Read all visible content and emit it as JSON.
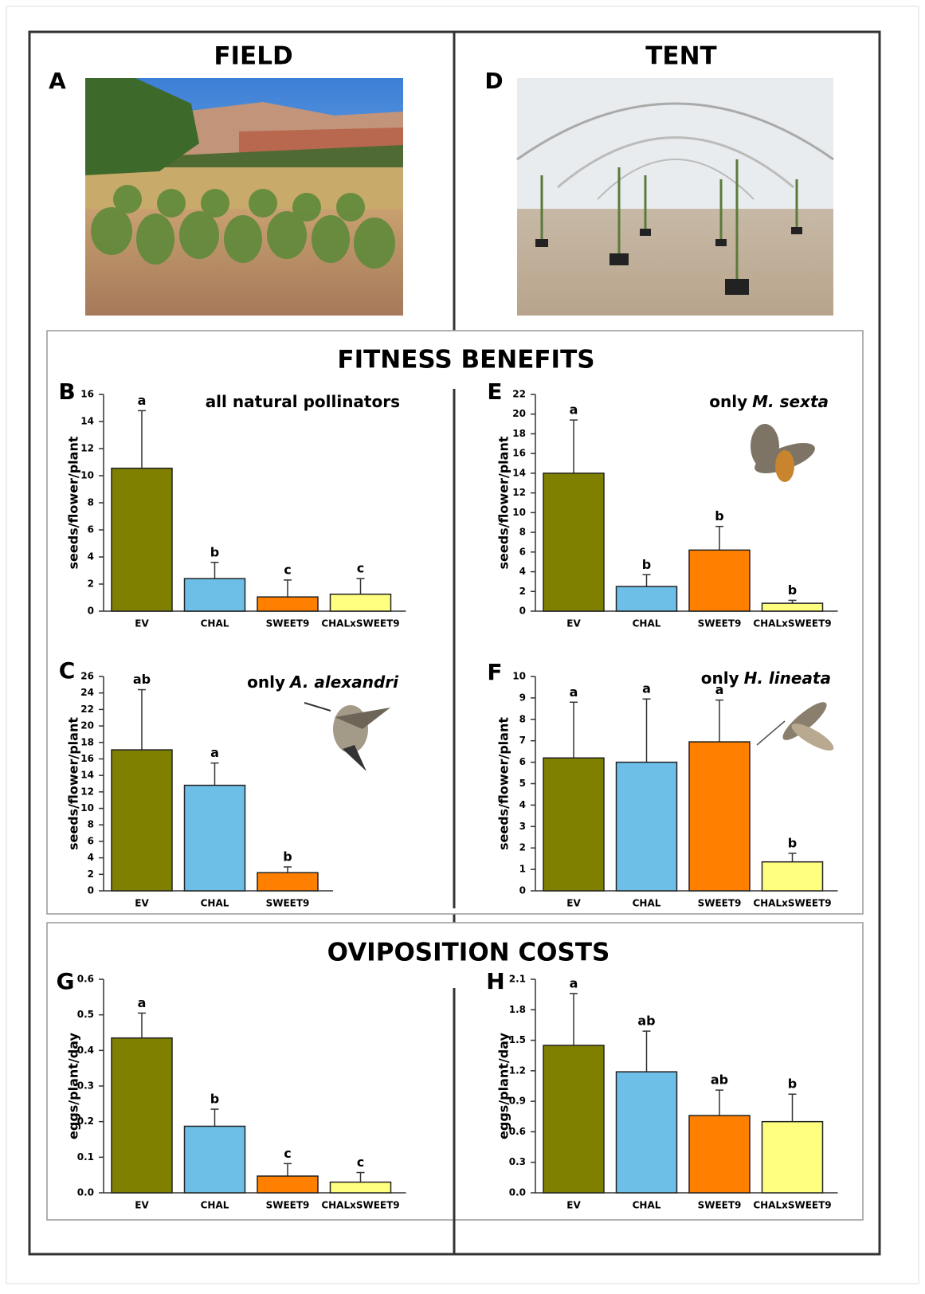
{
  "figure": {
    "field_panel": "A",
    "field_title": "FIELD",
    "tent_panel": "D",
    "tent_title": "TENT",
    "fitness_title": "FITNESS BENEFITS",
    "oviposition_title": "OVIPOSITION COSTS"
  },
  "chart_data": [
    {
      "type": "bar",
      "panel": "B",
      "subtitle": "all natural pollinators",
      "y_label": "seeds/flower/plant",
      "categories": [
        "EV",
        "CHAL",
        "SWEET9",
        "CHALxSWEET9"
      ],
      "values": [
        10.55,
        2.4,
        1.05,
        1.25
      ],
      "errors": [
        4.25,
        1.2,
        1.25,
        1.15
      ],
      "letters": [
        "a",
        "b",
        "c",
        "c"
      ],
      "colors": [
        "#808000",
        "#6dbfe8",
        "#ff8000",
        "#ffff80"
      ],
      "ylim": [
        0,
        16
      ],
      "yticks": [
        0,
        2,
        4,
        6,
        8,
        10,
        12,
        14,
        16
      ]
    },
    {
      "type": "bar",
      "panel": "E",
      "subtitle": "only",
      "subtitle_species": "M. sexta",
      "y_label": "seeds/flower/plant",
      "categories": [
        "EV",
        "CHAL",
        "SWEET9",
        "CHALxSWEET9"
      ],
      "values": [
        14.0,
        2.5,
        6.2,
        0.8
      ],
      "errors": [
        5.4,
        1.2,
        2.4,
        0.3
      ],
      "letters": [
        "a",
        "b",
        "b",
        "b"
      ],
      "colors": [
        "#808000",
        "#6dbfe8",
        "#ff8000",
        "#ffff80"
      ],
      "ylim": [
        0,
        22
      ],
      "yticks": [
        0,
        2,
        4,
        6,
        8,
        10,
        12,
        14,
        16,
        18,
        20,
        22
      ]
    },
    {
      "type": "bar",
      "panel": "C",
      "subtitle": "only",
      "subtitle_species": "A. alexandri",
      "y_label": "seeds/flower/plant",
      "categories": [
        "EV",
        "CHAL",
        "SWEET9"
      ],
      "values": [
        17.1,
        12.8,
        2.2
      ],
      "errors": [
        7.3,
        2.7,
        0.7
      ],
      "letters": [
        "ab",
        "a",
        "b"
      ],
      "colors": [
        "#808000",
        "#6dbfe8",
        "#ff8000"
      ],
      "ylim": [
        0,
        26
      ],
      "yticks": [
        0,
        2,
        4,
        6,
        8,
        10,
        12,
        14,
        16,
        18,
        20,
        22,
        24,
        26
      ]
    },
    {
      "type": "bar",
      "panel": "F",
      "subtitle": "only",
      "subtitle_species": "H. lineata",
      "y_label": "seeds/flower/plant",
      "categories": [
        "EV",
        "CHAL",
        "SWEET9",
        "CHALxSWEET9"
      ],
      "values": [
        6.2,
        6.0,
        6.95,
        1.35
      ],
      "errors": [
        2.6,
        2.95,
        1.95,
        0.4
      ],
      "letters": [
        "a",
        "a",
        "a",
        "b"
      ],
      "colors": [
        "#808000",
        "#6dbfe8",
        "#ff8000",
        "#ffff80"
      ],
      "ylim": [
        0,
        10
      ],
      "yticks": [
        0,
        1,
        2,
        3,
        4,
        5,
        6,
        7,
        8,
        9,
        10
      ]
    },
    {
      "type": "bar",
      "panel": "G",
      "y_label": "eggs/plant/day",
      "categories": [
        "EV",
        "CHAL",
        "SWEET9",
        "CHALxSWEET9"
      ],
      "values": [
        0.435,
        0.187,
        0.047,
        0.03
      ],
      "errors": [
        0.07,
        0.048,
        0.035,
        0.027
      ],
      "letters": [
        "a",
        "b",
        "c",
        "c"
      ],
      "colors": [
        "#808000",
        "#6dbfe8",
        "#ff8000",
        "#ffff80"
      ],
      "ylim": [
        0,
        0.6
      ],
      "yticks": [
        {
          "value": 0,
          "label": "0.0"
        },
        0.1,
        0.2,
        0.3,
        0.4,
        0.5,
        0.6
      ]
    },
    {
      "type": "bar",
      "panel": "H",
      "y_label": "eggs/plant/day",
      "categories": [
        "EV",
        "CHAL",
        "SWEET9",
        "CHALxSWEET9"
      ],
      "values": [
        1.45,
        1.19,
        0.76,
        0.7
      ],
      "errors": [
        0.51,
        0.4,
        0.25,
        0.27
      ],
      "letters": [
        "a",
        "ab",
        "ab",
        "b"
      ],
      "colors": [
        "#808000",
        "#6dbfe8",
        "#ff8000",
        "#ffff80"
      ],
      "ylim": [
        0,
        2.1
      ],
      "yticks": [
        {
          "value": 0,
          "label": "0.0"
        },
        0.3,
        0.6,
        0.9,
        1.2,
        1.5,
        1.8,
        2.1
      ]
    }
  ]
}
